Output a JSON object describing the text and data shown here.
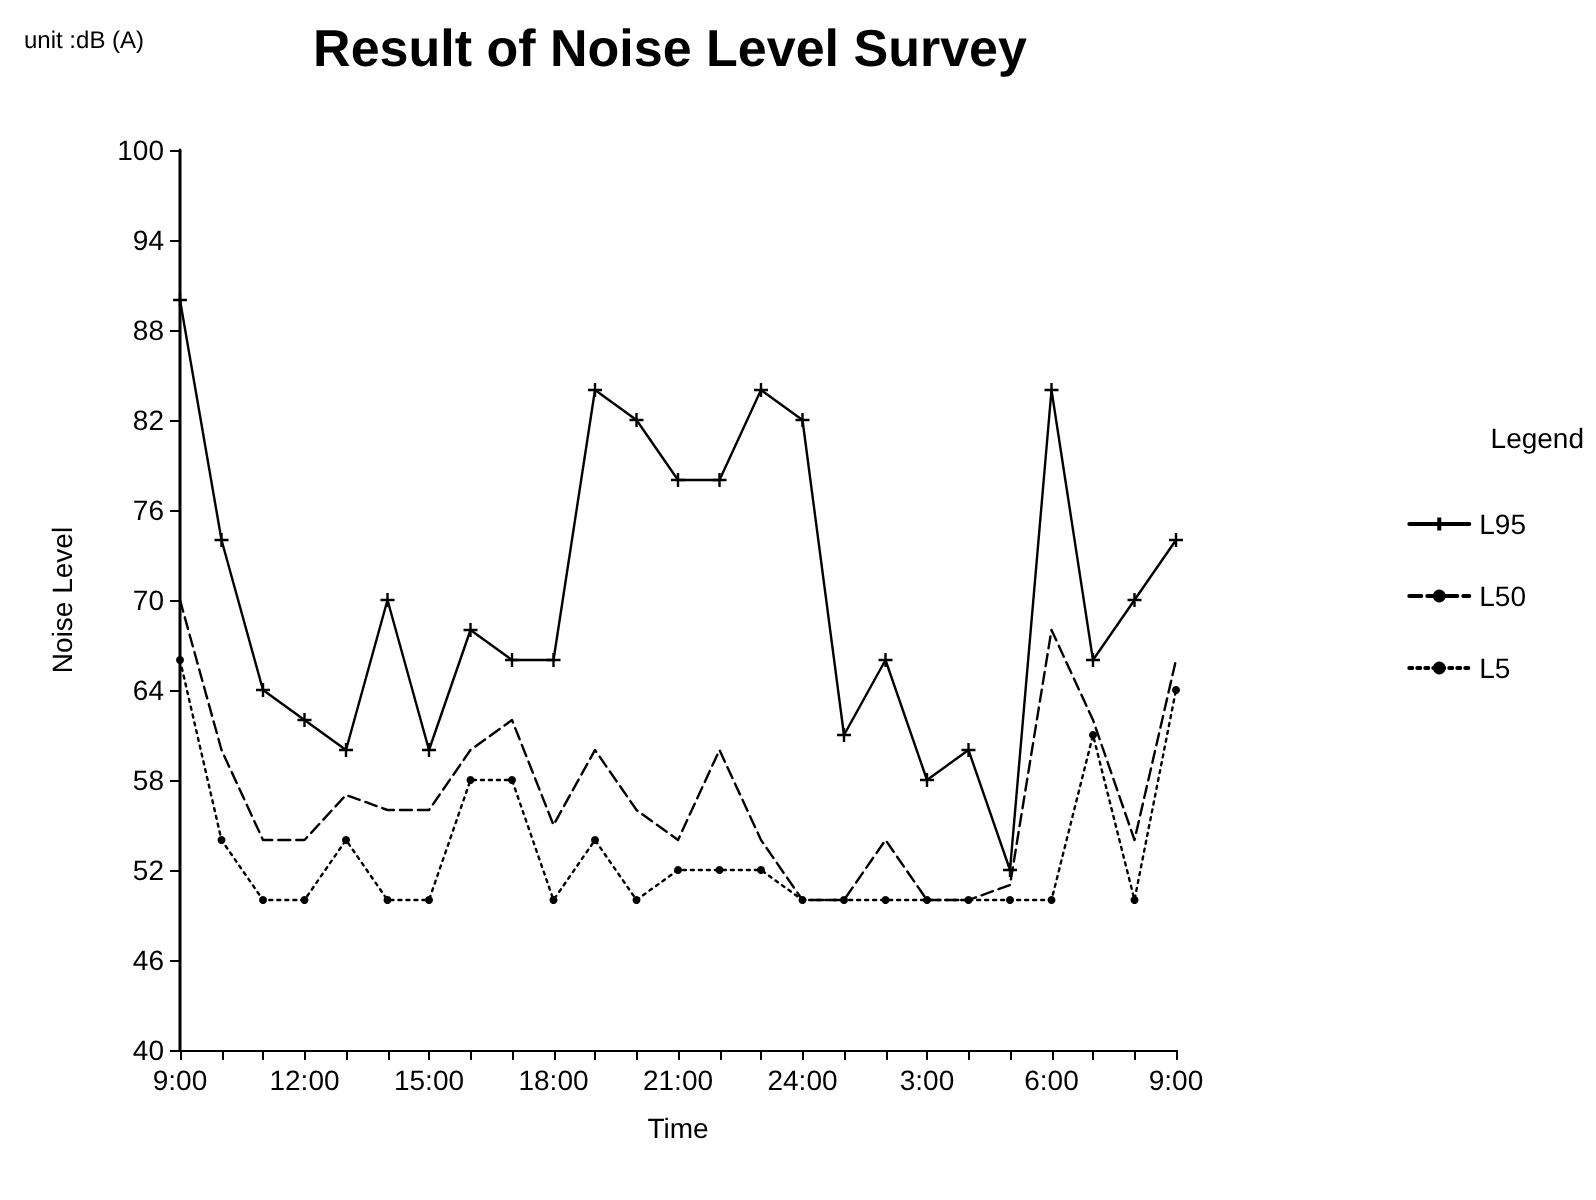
{
  "chart_data": {
    "type": "line",
    "title": "Result of Noise Level Survey",
    "xlabel": "Time",
    "ylabel": "Noise Level",
    "legend_title": "Legend",
    "annotations": [
      "unit :dB (A)"
    ],
    "categories": [
      "9:00",
      null,
      null,
      "12:00",
      null,
      null,
      "15:00",
      null,
      null,
      "18:00",
      null,
      null,
      "21:00",
      null,
      null,
      "24:00",
      null,
      null,
      "3:00",
      null,
      null,
      "6:00",
      null,
      null,
      "9:00"
    ],
    "series": [
      {
        "name": "L95",
        "color": "#000000",
        "marker": "cross",
        "line_style": "solid",
        "values": [
          90,
          74,
          64,
          62,
          60,
          70,
          60,
          68,
          66,
          66,
          84,
          82,
          78,
          78,
          84,
          82,
          61,
          66,
          58,
          60,
          52,
          84,
          66,
          70,
          74
        ]
      },
      {
        "name": "L50",
        "color": "#000000",
        "marker": "none",
        "line_style": "dashed",
        "values": [
          70,
          60,
          54,
          54,
          57,
          56,
          56,
          60,
          62,
          55,
          60,
          56,
          54,
          60,
          54,
          50,
          50,
          54,
          50,
          50,
          51,
          68,
          62,
          54,
          66
        ]
      },
      {
        "name": "L5",
        "color": "#000000",
        "marker": "circle",
        "line_style": "dotted",
        "values": [
          66,
          54,
          50,
          50,
          54,
          50,
          50,
          58,
          58,
          50,
          54,
          50,
          52,
          52,
          52,
          50,
          50,
          50,
          50,
          50,
          50,
          50,
          61,
          50,
          64
        ]
      }
    ],
    "ylim": [
      40,
      100
    ],
    "yticks": [
      40,
      46,
      52,
      58,
      64,
      70,
      76,
      82,
      88,
      94,
      100
    ],
    "grid": false,
    "legend": "right"
  }
}
